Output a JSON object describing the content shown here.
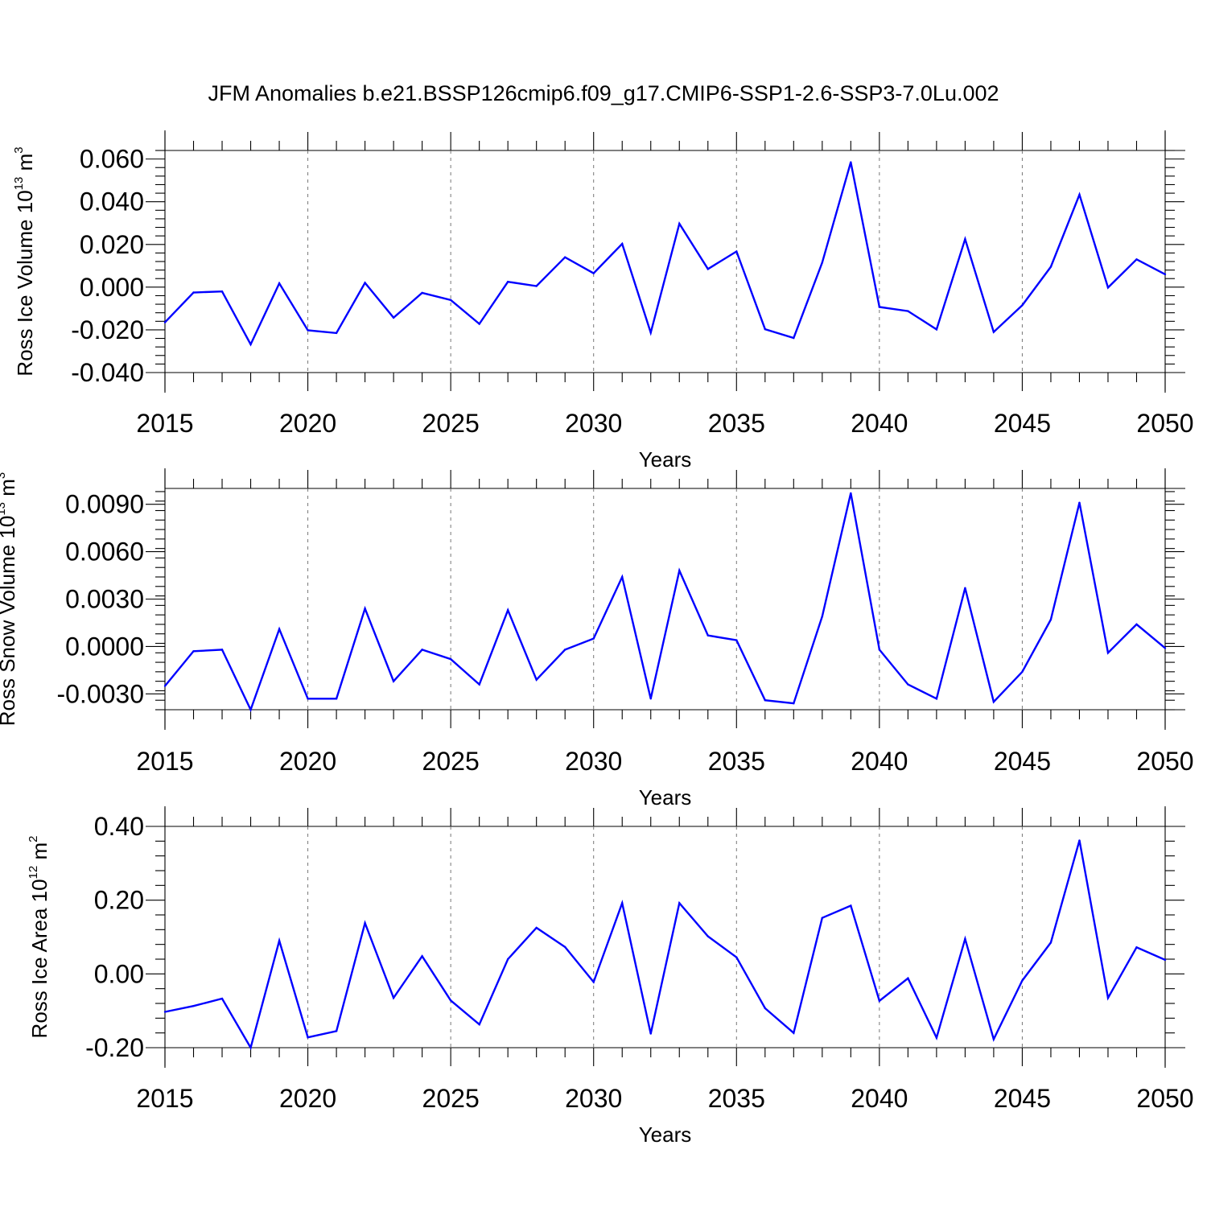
{
  "title": "JFM Anomalies b.e21.BSSP126cmip6.f09_g17.CMIP6-SSP1-2.6-SSP3-7.0Lu.002",
  "colors": {
    "line": "#0000ff",
    "grid": "#777777",
    "axis": "#000000"
  },
  "chart_data": [
    {
      "type": "line",
      "ylabel": {
        "text": "Ross Ice Volume 10",
        "sup": "13",
        "unit": " m",
        "unit_sup": "3"
      },
      "xlabel": "Years",
      "xlim": [
        2015,
        2050
      ],
      "ylim": [
        -0.04,
        0.064
      ],
      "yticks": [
        -0.04,
        -0.02,
        0.0,
        0.02,
        0.04,
        0.06
      ],
      "ytick_labels": [
        "-0.040",
        "-0.020",
        "0.000",
        "0.020",
        "0.040",
        "0.060"
      ],
      "xticks": [
        2015,
        2020,
        2025,
        2030,
        2035,
        2040,
        2045,
        2050
      ],
      "xtick_labels": [
        "2015",
        "2020",
        "2025",
        "2030",
        "2035",
        "2040",
        "2045",
        "2050"
      ],
      "grid": "vertical dashed at x ticks",
      "x": [
        2015,
        2016,
        2017,
        2018,
        2019,
        2020,
        2021,
        2022,
        2023,
        2024,
        2025,
        2026,
        2027,
        2028,
        2029,
        2030,
        2031,
        2032,
        2033,
        2034,
        2035,
        2036,
        2037,
        2038,
        2039,
        2040,
        2041,
        2042,
        2043,
        2044,
        2045,
        2046,
        2047,
        2048,
        2049,
        2050
      ],
      "values": [
        -0.0165,
        -0.0025,
        -0.002,
        -0.0268,
        0.0018,
        -0.0202,
        -0.0215,
        0.002,
        -0.0143,
        -0.0027,
        -0.006,
        -0.0172,
        0.0025,
        0.0005,
        0.014,
        0.0065,
        0.0203,
        -0.0213,
        0.0297,
        0.0085,
        0.0167,
        -0.0197,
        -0.0238,
        0.0115,
        0.0585,
        -0.0093,
        -0.0112,
        -0.0198,
        0.0225,
        -0.021,
        -0.0085,
        0.0095,
        0.0433,
        -0.0002,
        0.013,
        0.006
      ]
    },
    {
      "type": "line",
      "ylabel": {
        "text": "Ross Snow Volume 10",
        "sup": "13",
        "unit": " m",
        "unit_sup": "3"
      },
      "xlabel": "Years",
      "xlim": [
        2015,
        2050
      ],
      "ylim": [
        -0.004,
        0.01
      ],
      "yticks": [
        -0.003,
        0.0,
        0.003,
        0.006,
        0.009
      ],
      "ytick_labels": [
        "-0.0030",
        "0.0000",
        "0.0030",
        "0.0060",
        "0.0090"
      ],
      "xticks": [
        2015,
        2020,
        2025,
        2030,
        2035,
        2040,
        2045,
        2050
      ],
      "xtick_labels": [
        "2015",
        "2020",
        "2025",
        "2030",
        "2035",
        "2040",
        "2045",
        "2050"
      ],
      "grid": "vertical dashed at x ticks",
      "x": [
        2015,
        2016,
        2017,
        2018,
        2019,
        2020,
        2021,
        2022,
        2023,
        2024,
        2025,
        2026,
        2027,
        2028,
        2029,
        2030,
        2031,
        2032,
        2033,
        2034,
        2035,
        2036,
        2037,
        2038,
        2039,
        2040,
        2041,
        2042,
        2043,
        2044,
        2045,
        2046,
        2047,
        2048,
        2049,
        2050
      ],
      "values": [
        -0.0025,
        -0.0003,
        -0.0002,
        -0.004,
        0.0011,
        -0.0033,
        -0.0033,
        0.0024,
        -0.0022,
        -0.0002,
        -0.0008,
        -0.0024,
        0.0023,
        -0.0021,
        -0.0002,
        0.0005,
        0.0044,
        -0.0033,
        0.0048,
        0.0007,
        0.0004,
        -0.0034,
        -0.0036,
        0.0019,
        0.0097,
        -0.0002,
        -0.0024,
        -0.0033,
        0.0037,
        -0.0035,
        -0.0016,
        0.0017,
        0.0091,
        -0.0004,
        0.0014,
        -0.0001
      ]
    },
    {
      "type": "line",
      "ylabel": {
        "text": "Ross Ice Area 10",
        "sup": "12",
        "unit": " m",
        "unit_sup": "2"
      },
      "xlabel": "Years",
      "xlim": [
        2015,
        2050
      ],
      "ylim": [
        -0.2,
        0.4
      ],
      "yticks": [
        -0.2,
        0.0,
        0.2,
        0.4
      ],
      "ytick_labels": [
        "-0.20",
        "0.00",
        "0.20",
        "0.40"
      ],
      "xticks": [
        2015,
        2020,
        2025,
        2030,
        2035,
        2040,
        2045,
        2050
      ],
      "xtick_labels": [
        "2015",
        "2020",
        "2025",
        "2030",
        "2035",
        "2040",
        "2045",
        "2050"
      ],
      "grid": "vertical dashed at x ticks",
      "x": [
        2015,
        2016,
        2017,
        2018,
        2019,
        2020,
        2021,
        2022,
        2023,
        2024,
        2025,
        2026,
        2027,
        2028,
        2029,
        2030,
        2031,
        2032,
        2033,
        2034,
        2035,
        2036,
        2037,
        2038,
        2039,
        2040,
        2041,
        2042,
        2043,
        2044,
        2045,
        2046,
        2047,
        2048,
        2049,
        2050
      ],
      "values": [
        -0.103,
        -0.087,
        -0.067,
        -0.2,
        0.09,
        -0.172,
        -0.155,
        0.138,
        -0.065,
        0.048,
        -0.072,
        -0.137,
        0.04,
        0.125,
        0.073,
        -0.022,
        0.192,
        -0.162,
        0.192,
        0.102,
        0.045,
        -0.093,
        -0.16,
        0.152,
        0.185,
        -0.073,
        -0.012,
        -0.173,
        0.095,
        -0.177,
        -0.018,
        0.085,
        0.362,
        -0.065,
        0.072,
        0.038
      ]
    }
  ]
}
